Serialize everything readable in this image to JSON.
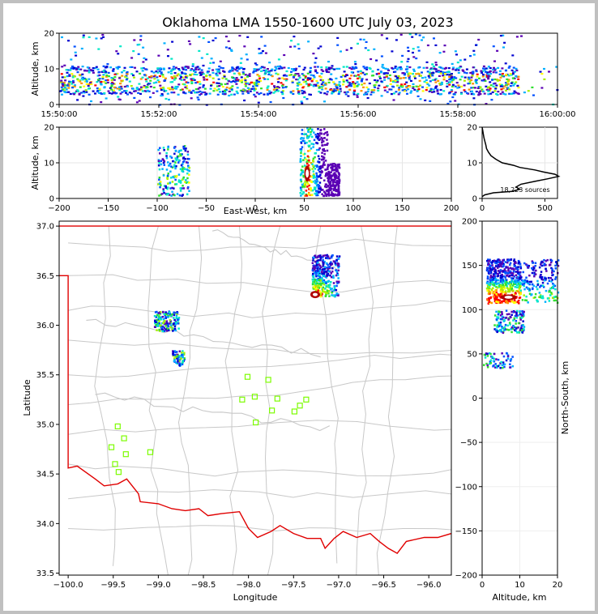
{
  "title": "Oklahoma LMA 1550-1600 UTC July 03, 2023",
  "colors": {
    "state_border": "#e00000",
    "county_lines": "#c8c8c8",
    "stations": "#7cfc00",
    "background": "#ffffff"
  },
  "chart_data": [
    {
      "id": "time-height",
      "type": "heatmap",
      "ylabel": "Altitude, km",
      "ylim": [
        0,
        20
      ],
      "y_ticks": [
        0,
        10,
        20
      ],
      "x_ticks": [
        "15:50:00",
        "15:52:00",
        "15:54:00",
        "15:56:00",
        "15:58:00",
        "16:00:00"
      ],
      "xlim_minutes": [
        0,
        10
      ],
      "main_band_km": [
        3,
        11
      ],
      "sparse_max_km": 20
    },
    {
      "id": "east-west-height",
      "type": "heatmap",
      "xlabel": "East-West, km",
      "ylabel": "Altitude, km",
      "xlim": [
        -200,
        200
      ],
      "ylim": [
        0,
        20
      ],
      "x_ticks": [
        -200,
        -150,
        -100,
        -50,
        0,
        50,
        100,
        150,
        200
      ],
      "y_ticks": [
        0,
        10,
        20
      ],
      "cells": [
        {
          "x_range": [
            -100,
            -68
          ],
          "y_range": [
            1,
            15
          ]
        },
        {
          "x_range": [
            45,
            85
          ],
          "y_range": [
            1,
            20
          ],
          "core_x": 53
        }
      ]
    },
    {
      "id": "altitude-histogram",
      "type": "line",
      "ylim": [
        0,
        20
      ],
      "xlim": [
        0,
        600
      ],
      "x_ticks": [
        0,
        500
      ],
      "y_ticks": [
        0,
        10,
        20
      ],
      "annotation": "18,223 sources",
      "profile": [
        {
          "alt": 0.5,
          "count": 0
        },
        {
          "alt": 1.0,
          "count": 20
        },
        {
          "alt": 1.6,
          "count": 90
        },
        {
          "alt": 2.0,
          "count": 240
        },
        {
          "alt": 2.6,
          "count": 300
        },
        {
          "alt": 3.2,
          "count": 270
        },
        {
          "alt": 4.0,
          "count": 310
        },
        {
          "alt": 4.8,
          "count": 420
        },
        {
          "alt": 5.5,
          "count": 520
        },
        {
          "alt": 6.2,
          "count": 610
        },
        {
          "alt": 6.8,
          "count": 580
        },
        {
          "alt": 7.4,
          "count": 490
        },
        {
          "alt": 8.0,
          "count": 420
        },
        {
          "alt": 8.7,
          "count": 300
        },
        {
          "alt": 9.3,
          "count": 250
        },
        {
          "alt": 10.0,
          "count": 160
        },
        {
          "alt": 11.0,
          "count": 110
        },
        {
          "alt": 12.0,
          "count": 70
        },
        {
          "alt": 13.0,
          "count": 50
        },
        {
          "alt": 14.0,
          "count": 35
        },
        {
          "alt": 15.0,
          "count": 30
        },
        {
          "alt": 16.0,
          "count": 22
        },
        {
          "alt": 17.0,
          "count": 15
        },
        {
          "alt": 18.0,
          "count": 10
        },
        {
          "alt": 19.0,
          "count": 5
        },
        {
          "alt": 20.0,
          "count": 0
        }
      ]
    },
    {
      "id": "plan-view",
      "type": "scatter",
      "xlabel": "Longitude",
      "ylabel": "Latitude",
      "xlim": [
        -100.1,
        -95.75
      ],
      "ylim": [
        33.48,
        37.05
      ],
      "x_ticks": [
        "-100.0",
        "-99.5",
        "-99.0",
        "-98.5",
        "-98.0",
        "-97.5",
        "-97.0",
        "-96.5",
        "-96.0"
      ],
      "y_ticks": [
        "33.5",
        "34.0",
        "34.5",
        "35.0",
        "35.5",
        "36.0",
        "36.5",
        "37.0"
      ],
      "stations": [
        [
          -99.45,
          34.98
        ],
        [
          -99.38,
          34.86
        ],
        [
          -99.52,
          34.77
        ],
        [
          -99.36,
          34.7
        ],
        [
          -99.48,
          34.6
        ],
        [
          -99.44,
          34.52
        ],
        [
          -99.09,
          34.72
        ],
        [
          -98.01,
          35.48
        ],
        [
          -97.78,
          35.45
        ],
        [
          -98.07,
          35.25
        ],
        [
          -97.93,
          35.28
        ],
        [
          -97.68,
          35.26
        ],
        [
          -97.92,
          35.02
        ],
        [
          -97.74,
          35.14
        ],
        [
          -97.49,
          35.13
        ],
        [
          -97.43,
          35.19
        ],
        [
          -97.36,
          35.25
        ]
      ],
      "lightning_regions": [
        {
          "lon_range": [
            -99.05,
            -98.78
          ],
          "lat_range": [
            35.95,
            36.15
          ]
        },
        {
          "lon_range": [
            -98.85,
            -98.72
          ],
          "lat_range": [
            35.6,
            35.75
          ]
        },
        {
          "lon_range": [
            -97.3,
            -97.0
          ],
          "lat_range": [
            36.3,
            36.72
          ],
          "core": [
            -97.26,
            36.31
          ]
        }
      ]
    },
    {
      "id": "north-south-height",
      "type": "heatmap",
      "xlabel": "Altitude, km",
      "ylabel": "North-South, km",
      "xlim": [
        0,
        20
      ],
      "ylim": [
        -200,
        200
      ],
      "x_ticks": [
        0,
        10,
        20
      ],
      "y_ticks": [
        -200,
        -150,
        -100,
        -50,
        0,
        50,
        100,
        150,
        200
      ],
      "cells": [
        {
          "y_range": [
            108,
            158
          ],
          "x_range": [
            1,
            20
          ],
          "core_y": 114
        },
        {
          "y_range": [
            75,
            100
          ],
          "x_range": [
            3,
            11
          ]
        },
        {
          "y_range": [
            35,
            52
          ],
          "x_range": [
            0,
            8
          ]
        }
      ]
    }
  ]
}
